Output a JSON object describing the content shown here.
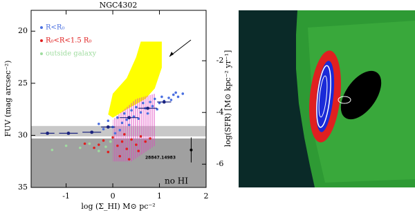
{
  "chart_data": {
    "type": "scatter",
    "title": "NGC4302",
    "xlabel": "log (Σ_HI)   M⊙ pc⁻²",
    "ylabel": "FUV (mag arcsec⁻²)",
    "y2label": "log(SFR) [M⊙ kpc⁻² yr⁻¹]",
    "xlim": [
      -1.75,
      2.0
    ],
    "xticks": [
      -1,
      0,
      1,
      2
    ],
    "ylim": [
      18,
      35
    ],
    "yticks": [
      20,
      25,
      30,
      35
    ],
    "y2lim": [
      -0.05,
      -6.9
    ],
    "y2ticks": [
      -2,
      -4,
      -6
    ],
    "series": [
      {
        "name": "R<R₀",
        "color": "#4a6fe0",
        "x": [
          -0.3,
          -0.1,
          0.0,
          0.1,
          0.2,
          0.25,
          0.3,
          0.4,
          0.45,
          0.5,
          0.6,
          0.65,
          0.7,
          0.8,
          0.85,
          0.9,
          1.0,
          1.05,
          1.1,
          1.2,
          1.3,
          1.4,
          1.5,
          0.15,
          0.35,
          0.55,
          0.75,
          0.95,
          -0.2,
          0.05,
          1.25,
          1.35
        ],
        "values": [
          28.9,
          28.6,
          29.2,
          28.3,
          28.8,
          27.9,
          28.5,
          27.6,
          28.2,
          27.3,
          27.8,
          26.9,
          27.4,
          26.8,
          27.2,
          26.5,
          26.9,
          26.3,
          26.7,
          26.4,
          26.1,
          26.3,
          26.0,
          29.5,
          29.0,
          28.4,
          27.9,
          27.5,
          29.4,
          29.8,
          26.6,
          25.9
        ]
      },
      {
        "name": "R₀<R<1.5 R₀",
        "color": "#e02020",
        "x": [
          -0.6,
          -0.4,
          -0.2,
          -0.1,
          0.0,
          0.1,
          0.2,
          0.3,
          0.4,
          0.5,
          0.6,
          0.7,
          0.15,
          0.35,
          0.55,
          -0.3,
          0.8,
          0.25
        ],
        "values": [
          30.8,
          31.2,
          30.5,
          31.6,
          30.2,
          31.0,
          30.6,
          31.3,
          30.4,
          30.9,
          30.1,
          30.6,
          32.0,
          32.3,
          31.5,
          30.9,
          30.3,
          29.9
        ]
      },
      {
        "name": "outside galaxy",
        "color": "#9fdc9f",
        "x": [
          -1.3,
          -1.0,
          -0.7,
          -0.5,
          -0.3,
          -0.15,
          -0.05
        ],
        "values": [
          31.4,
          31.0,
          31.2,
          30.8,
          31.5,
          31.1,
          30.6
        ]
      }
    ],
    "binned": {
      "color": "#1a237e",
      "x": [
        -1.4,
        -0.95,
        -0.45,
        -0.1,
        0.35,
        0.75,
        1.1
      ],
      "values": [
        29.8,
        29.8,
        29.7,
        29.2,
        28.3,
        27.4,
        26.8
      ],
      "xerr": [
        0.15,
        0.2,
        0.2,
        0.15,
        0.2,
        0.2,
        0.15
      ]
    },
    "typical_error": {
      "x": 1.68,
      "value": 31.4,
      "yerr": 1.2
    },
    "bands": [
      {
        "from": 29.1,
        "to": 30.1,
        "color": "#c8c8c8"
      },
      {
        "from": 30.3,
        "to": 35,
        "color": "#a0a0a0"
      }
    ],
    "regions": [
      {
        "color": "#ffff00",
        "x": [
          -0.1,
          0.0,
          0.3,
          0.5,
          0.6,
          1.05,
          1.05,
          0.9,
          0.7,
          0.3,
          0.0
        ],
        "values": [
          28.0,
          26.0,
          24.5,
          22.5,
          21.0,
          21.0,
          23.5,
          25.5,
          26.5,
          27.5,
          28.3
        ]
      },
      {
        "color": "#e040c0",
        "x": [
          0.0,
          0.5,
          0.9,
          0.9,
          0.4,
          0.0
        ],
        "values": [
          28.5,
          26.5,
          26.0,
          31.0,
          32.5,
          32.5
        ]
      }
    ],
    "annotations": [
      "no HI",
      "28847.14983"
    ]
  }
}
